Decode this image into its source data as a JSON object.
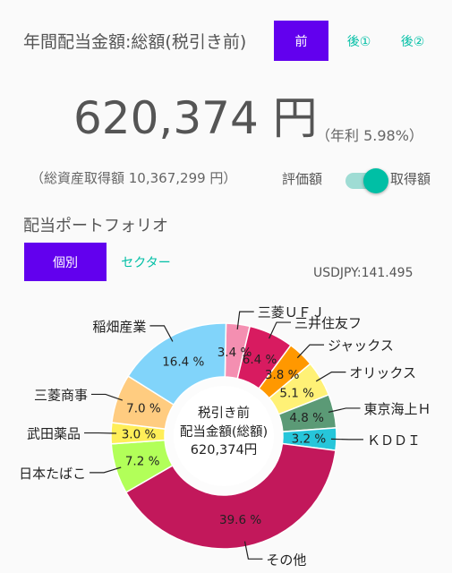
{
  "header": {
    "title": "年間配当金額:総額(税引き前)",
    "tabs": [
      {
        "label": "前",
        "active": true
      },
      {
        "label": "後①",
        "active": false
      },
      {
        "label": "後②",
        "active": false
      }
    ]
  },
  "summary": {
    "amount": "620,374 円",
    "yield": "（年利 5.98%）",
    "assets": "（総資産取得額 10,367,299 円）",
    "toggle_left_label": "評価額",
    "toggle_right_label": "取得額",
    "toggle_state": "取得額"
  },
  "portfolio": {
    "title": "配当ポートフォリオ",
    "tabs": [
      {
        "label": "個別",
        "active": true
      },
      {
        "label": "セクター",
        "active": false
      }
    ],
    "fx_rate": "USDJPY:141.495"
  },
  "chart_data": {
    "type": "pie",
    "style": "donut",
    "center_text": [
      "税引き前",
      "配当金額(総額)",
      "620,374円"
    ],
    "slices": [
      {
        "label": "三菱ＵＦＪ",
        "value": 3.4,
        "display": "3.4 %",
        "color": "#f48fb1"
      },
      {
        "label": "三井住友フ",
        "value": 6.4,
        "display": "6.4 %",
        "color": "#d81b60"
      },
      {
        "label": "ジャックス",
        "value": 3.8,
        "display": "3.8 %",
        "color": "#ff9800"
      },
      {
        "label": "オリックス",
        "value": 5.1,
        "display": "5.1 %",
        "color": "#fff176"
      },
      {
        "label": "東京海上Ｈ",
        "value": 4.8,
        "display": "4.8 %",
        "color": "#5b9a76"
      },
      {
        "label": "ＫＤＤＩ",
        "value": 3.2,
        "display": "3.2 %",
        "color": "#26c6da"
      },
      {
        "label": "その他",
        "value": 39.6,
        "display": "39.6 %",
        "color": "#c2185b"
      },
      {
        "label": "日本たばこ",
        "value": 7.2,
        "display": "7.2 %",
        "color": "#b2ff59"
      },
      {
        "label": "武田薬品",
        "value": 3.0,
        "display": "3.0 %",
        "color": "#ffee58"
      },
      {
        "label": "三菱商事",
        "value": 7.0,
        "display": "7.0 %",
        "color": "#ffcc80"
      },
      {
        "label": "稲畑産業",
        "value": 16.4,
        "display": "16.4 %",
        "color": "#81d4fa"
      }
    ]
  }
}
